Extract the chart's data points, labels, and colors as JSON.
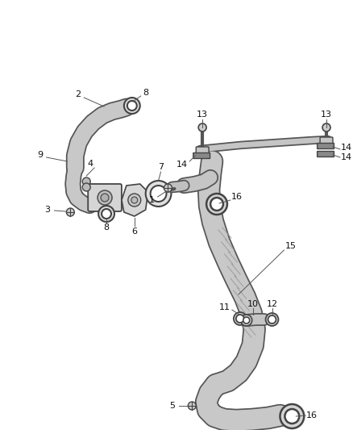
{
  "bg_color": "#ffffff",
  "line_color": "#444444",
  "figsize": [
    4.38,
    5.33
  ],
  "dpi": 100,
  "tube_color": "#c8c8c8",
  "tube_edge": "#555555",
  "ring_color": "#888888"
}
